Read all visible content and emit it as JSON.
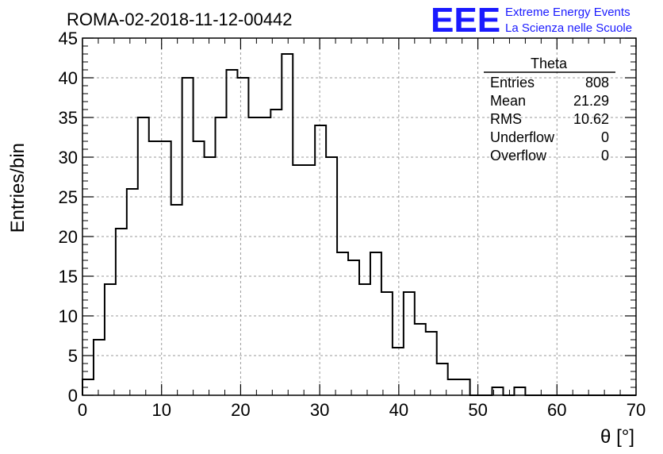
{
  "chart_data": {
    "type": "bar",
    "style": "step-histogram",
    "title": "ROMA-02-2018-11-12-00442",
    "xlabel": "θ [°]",
    "ylabel": "Entries/bin",
    "xlim": [
      0,
      70
    ],
    "ylim": [
      0,
      45
    ],
    "x_ticks": [
      "0",
      "10",
      "20",
      "30",
      "40",
      "50",
      "60",
      "70"
    ],
    "y_ticks": [
      "0",
      "5",
      "10",
      "15",
      "20",
      "25",
      "30",
      "35",
      "40",
      "45"
    ],
    "grid": true,
    "bin_width": 1.4,
    "bin_edges_start": 0,
    "values": [
      2,
      7,
      14,
      21,
      26,
      35,
      32,
      32,
      24,
      40,
      32,
      30,
      35,
      41,
      40,
      35,
      35,
      36,
      43,
      29,
      29,
      34,
      30,
      18,
      17,
      14,
      18,
      13,
      6,
      13,
      9,
      8,
      4,
      2,
      2,
      0,
      0,
      1,
      0,
      1,
      0,
      0,
      0,
      0,
      0,
      0,
      0,
      0,
      0,
      0
    ],
    "stats_box": {
      "name": "Theta",
      "rows": [
        {
          "label": "Entries",
          "value": "808"
        },
        {
          "label": "Mean",
          "value": "21.29"
        },
        {
          "label": "RMS",
          "value": "10.62"
        },
        {
          "label": "Underflow",
          "value": "0"
        },
        {
          "label": "Overflow",
          "value": "0"
        }
      ]
    }
  },
  "branding": {
    "logo": "EEE",
    "line1": "Extreme Energy Events",
    "line2": "La Scienza nelle Scuole",
    "color": "#1a1aff"
  },
  "colors": {
    "histogram": "#000000",
    "grid": "#9a9a9a"
  }
}
